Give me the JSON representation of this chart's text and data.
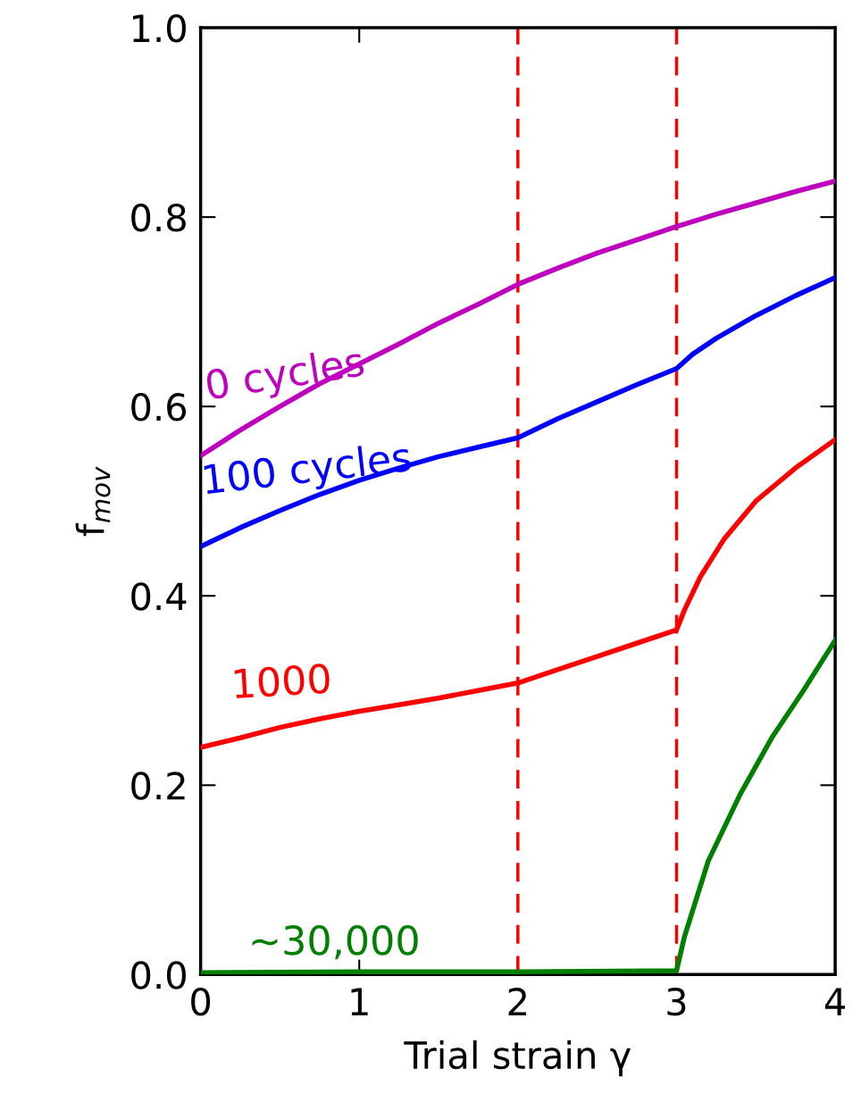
{
  "chart_data": {
    "type": "line",
    "xlabel": "Trial strain γ",
    "ylabel": "f$_{mov}$",
    "xlim": [
      0,
      4
    ],
    "xticks": [
      0,
      1,
      2,
      3,
      4
    ],
    "ylim": [
      0.0,
      1.0
    ],
    "yticks": [
      {
        "value": 0,
        "label": "0.0"
      },
      0.2,
      0.4,
      0.6,
      0.8,
      {
        "value": 1,
        "label": "1.0"
      }
    ],
    "grid": false,
    "legend": false,
    "line_style": "solid",
    "marker": "none",
    "series": [
      {
        "name": "0 cycles",
        "color": "#bf00bf",
        "x": [
          0,
          0.25,
          0.5,
          0.75,
          1,
          1.25,
          1.5,
          1.75,
          2,
          2.25,
          2.5,
          2.75,
          3,
          3.25,
          3.5,
          3.75,
          4
        ],
        "values": [
          0.548,
          0.575,
          0.6,
          0.624,
          0.645,
          0.666,
          0.688,
          0.708,
          0.729,
          0.746,
          0.762,
          0.776,
          0.79,
          0.803,
          0.815,
          0.827,
          0.838
        ]
      },
      {
        "name": "100 cycles",
        "color": "#0000ff",
        "x": [
          0,
          0.25,
          0.5,
          0.75,
          1,
          1.25,
          1.5,
          1.75,
          2,
          2.25,
          2.5,
          2.75,
          3,
          3.1,
          3.25,
          3.5,
          3.75,
          4
        ],
        "values": [
          0.452,
          0.472,
          0.49,
          0.507,
          0.522,
          0.535,
          0.547,
          0.557,
          0.567,
          0.587,
          0.605,
          0.623,
          0.64,
          0.655,
          0.672,
          0.696,
          0.717,
          0.736
        ]
      },
      {
        "name": "1000",
        "color": "#ff0000",
        "x": [
          0,
          0.25,
          0.5,
          0.75,
          1,
          1.25,
          1.5,
          1.75,
          2,
          2.25,
          2.5,
          2.75,
          3,
          3.05,
          3.15,
          3.3,
          3.5,
          3.75,
          4
        ],
        "values": [
          0.24,
          0.25,
          0.261,
          0.27,
          0.278,
          0.285,
          0.292,
          0.3,
          0.308,
          0.322,
          0.336,
          0.35,
          0.364,
          0.385,
          0.42,
          0.46,
          0.5,
          0.535,
          0.565
        ]
      },
      {
        "name": "~30,000",
        "color": "#007f00",
        "x": [
          0,
          1,
          2,
          3,
          3.05,
          3.2,
          3.4,
          3.6,
          3.8,
          4
        ],
        "values": [
          0.002,
          0.003,
          0.003,
          0.004,
          0.04,
          0.12,
          0.19,
          0.25,
          0.3,
          0.353
        ]
      }
    ],
    "ref_lines": [
      {
        "axis": "x",
        "value": 2,
        "color": "#ff0000",
        "line_style": "dashed"
      },
      {
        "axis": "x",
        "value": 3,
        "color": "#ff0000",
        "line_style": "dashed"
      }
    ]
  }
}
